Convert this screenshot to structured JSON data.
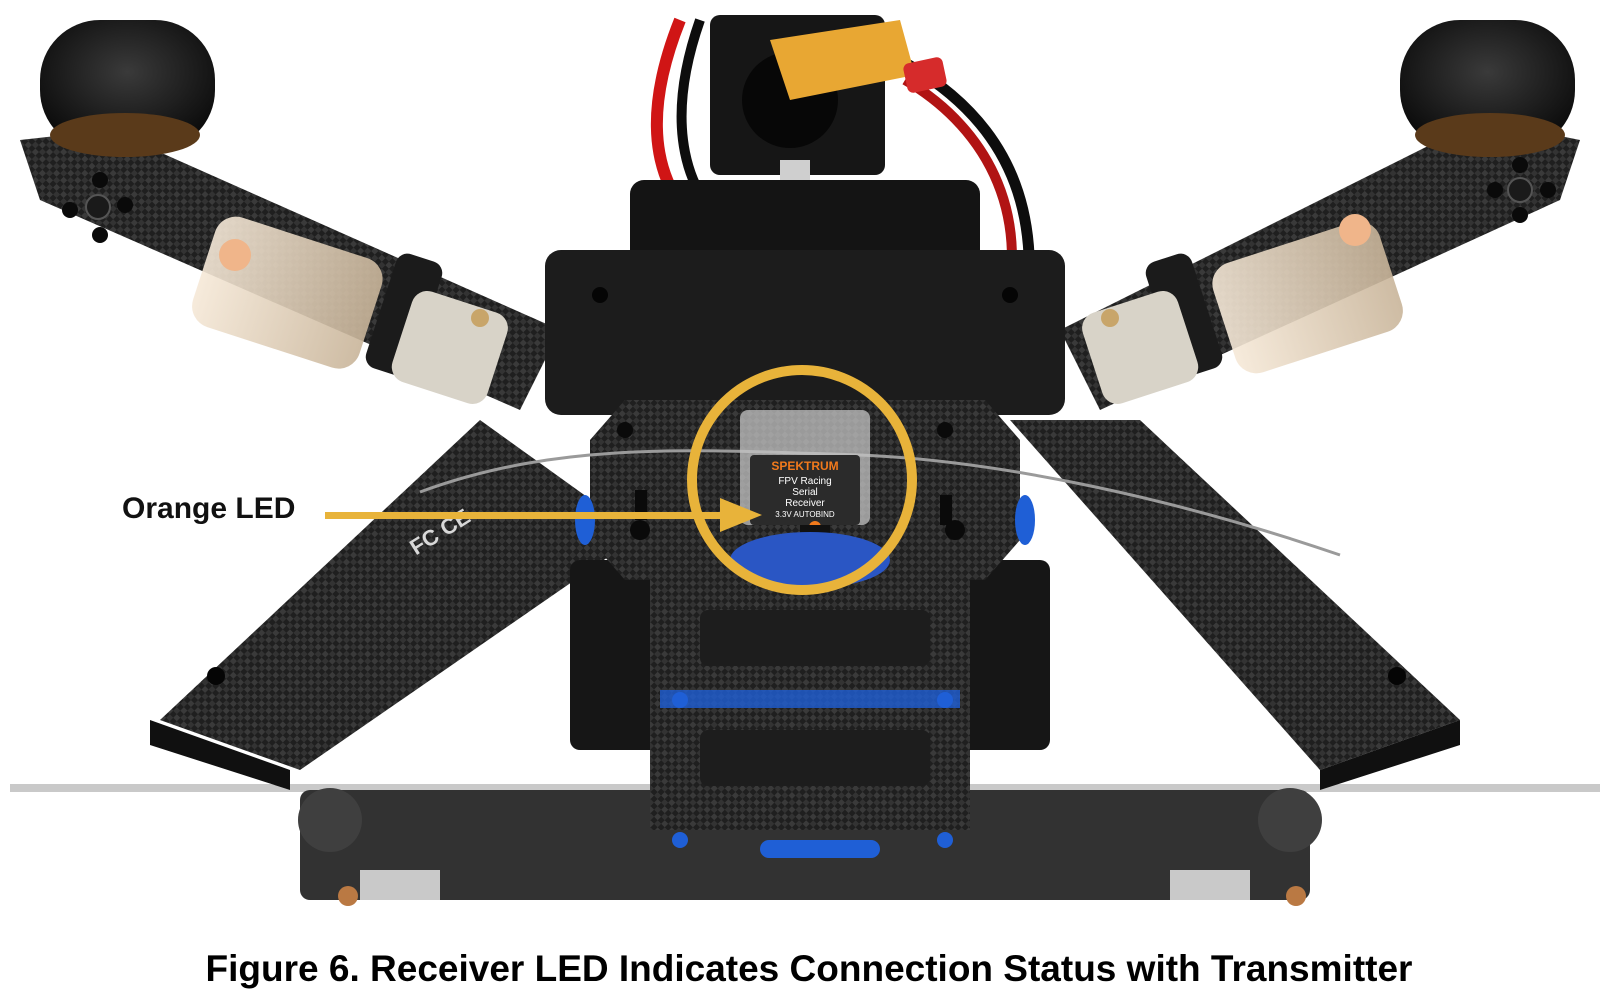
{
  "figure": {
    "callout_label": "Orange LED",
    "caption": "Figure 6. Receiver LED Indicates Connection Status with Transmitter",
    "receiver_labels": {
      "brand": "SPEKTRUM",
      "line1": "FPV Racing",
      "line2": "Serial",
      "line3": "Receiver",
      "line4": "3.3V AUTOBIND"
    },
    "colors": {
      "highlight": "#E8B33A",
      "led": "#F27A1C",
      "carbon": "#2a2a2a",
      "anodized_blue": "#1f5fd6"
    }
  }
}
